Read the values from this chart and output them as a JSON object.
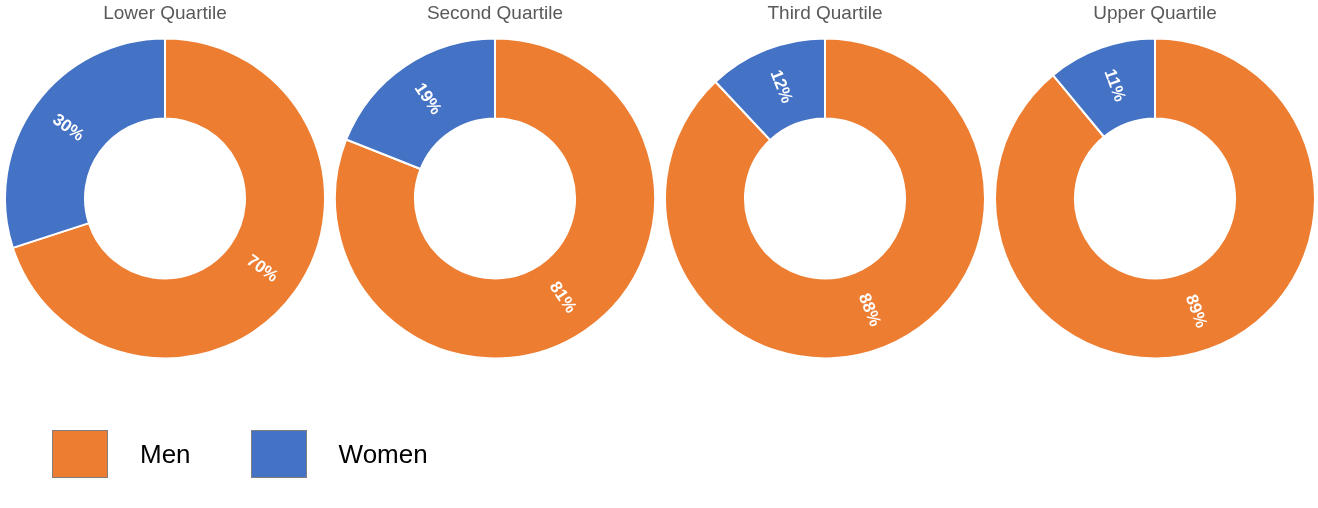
{
  "chart_data": [
    {
      "type": "donut",
      "title": "Lower Quartile",
      "categories": [
        "Men",
        "Women"
      ],
      "values": [
        70,
        30
      ],
      "colors": [
        "#ed7d31",
        "#4472c4"
      ],
      "value_labels": [
        "70%",
        "30%"
      ],
      "legend": "bottom"
    },
    {
      "type": "donut",
      "title": "Second Quartile",
      "categories": [
        null,
        null
      ],
      "values": [
        81,
        19
      ],
      "colors": [
        "#ed7d31",
        "#4472c4"
      ],
      "value_labels": [
        "81%",
        "19%"
      ]
    },
    {
      "type": "donut",
      "title": "Third Quartile",
      "categories": [
        null,
        null
      ],
      "values": [
        88,
        12
      ],
      "colors": [
        "#ed7d31",
        "#4472c4"
      ],
      "value_labels": [
        "88%",
        "12%"
      ]
    },
    {
      "type": "donut",
      "title": "Upper Quartile",
      "categories": [
        null,
        null
      ],
      "values": [
        89,
        11
      ],
      "colors": [
        "#ed7d31",
        "#4472c4"
      ],
      "value_labels": [
        "89%",
        "11%"
      ]
    }
  ]
}
